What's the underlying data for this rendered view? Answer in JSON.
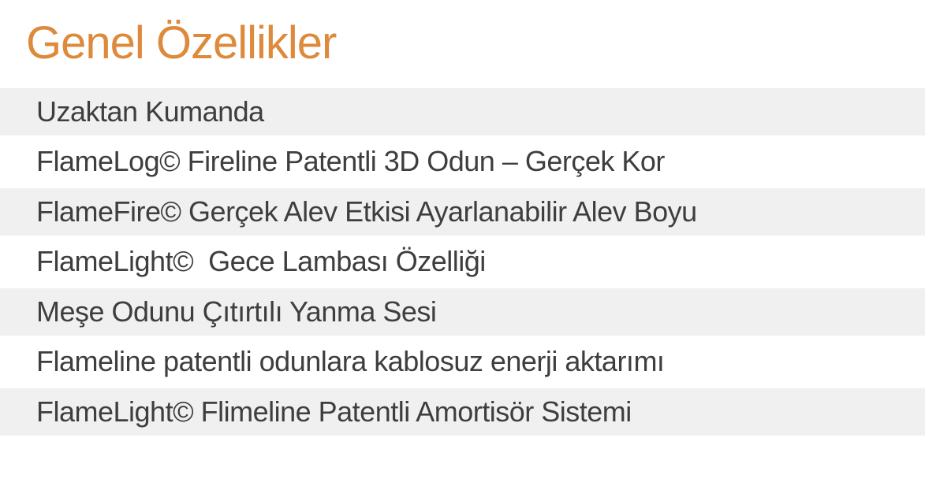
{
  "page": {
    "title": "Genel Özellikler"
  },
  "features": {
    "rows": [
      "Uzaktan Kumanda",
      "FlameLog© Fireline Patentli 3D Odun – Gerçek Kor",
      "FlameFire© Gerçek Alev Etkisi Ayarlanabilir Alev Boyu",
      "FlameLight©  Gece Lambası Özelliği",
      "Meşe Odunu Çıtırtılı Yanma Sesi",
      "Flameline patentli odunlara kablosuz enerji aktarımı",
      "FlameLight© Flimeline Patentli Amortisör Sistemi"
    ]
  },
  "colors": {
    "accent_orange": "#de8a3c",
    "row_alt_bg": "#f0f0f0",
    "row_text": "#3e3e3e",
    "background": "#ffffff"
  }
}
